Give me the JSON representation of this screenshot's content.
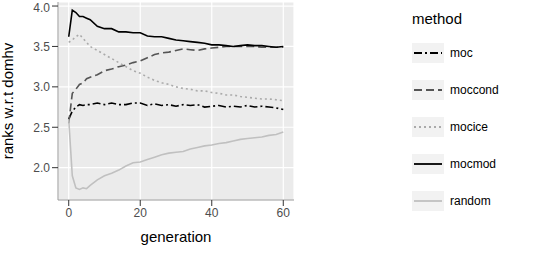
{
  "chart_data": {
    "type": "line",
    "x_label": "generation",
    "y_label": "ranks w.r.t domhv",
    "legend_title": "method",
    "legend": "right",
    "grid": true,
    "x": [
      0,
      1,
      2,
      3,
      4,
      5,
      6,
      8,
      10,
      12,
      14,
      16,
      18,
      20,
      22,
      24,
      26,
      28,
      30,
      32,
      34,
      36,
      38,
      40,
      42,
      44,
      46,
      48,
      50,
      52,
      54,
      56,
      58,
      60
    ],
    "xlim": [
      -3,
      63
    ],
    "xticks": [
      0,
      20,
      40,
      60
    ],
    "ylim": [
      1.6,
      4.05
    ],
    "yticks": [
      {
        "value": 2,
        "label": "2.0"
      },
      {
        "value": 2.5,
        "label": "2.5"
      },
      {
        "value": 3,
        "label": "3.0"
      },
      {
        "value": 3.5,
        "label": "3.5"
      },
      {
        "value": 4,
        "label": "4.0"
      }
    ],
    "series": [
      {
        "name": "moc",
        "color": "#000000",
        "line_style": "dashdot",
        "values": [
          2.6,
          2.7,
          2.75,
          2.78,
          2.77,
          2.78,
          2.78,
          2.8,
          2.78,
          2.8,
          2.78,
          2.78,
          2.8,
          2.8,
          2.77,
          2.79,
          2.77,
          2.78,
          2.76,
          2.78,
          2.77,
          2.78,
          2.75,
          2.76,
          2.77,
          2.75,
          2.76,
          2.75,
          2.77,
          2.75,
          2.76,
          2.75,
          2.74,
          2.72
        ]
      },
      {
        "name": "moccond",
        "color": "#555555",
        "line_style": "dashed",
        "values": [
          2.55,
          2.92,
          2.97,
          3.03,
          3.05,
          3.1,
          3.12,
          3.15,
          3.2,
          3.22,
          3.25,
          3.27,
          3.3,
          3.32,
          3.36,
          3.4,
          3.42,
          3.43,
          3.45,
          3.47,
          3.46,
          3.45,
          3.47,
          3.48,
          3.49,
          3.5,
          3.5,
          3.5,
          3.5,
          3.5,
          3.49,
          3.49,
          3.49,
          3.49
        ]
      },
      {
        "name": "mocice",
        "color": "#aaaaaa",
        "line_style": "dotted",
        "values": [
          3.55,
          3.58,
          3.62,
          3.65,
          3.6,
          3.55,
          3.5,
          3.45,
          3.4,
          3.35,
          3.3,
          3.25,
          3.2,
          3.17,
          3.12,
          3.08,
          3.05,
          3.03,
          3.0,
          2.98,
          2.97,
          2.95,
          2.95,
          2.93,
          2.92,
          2.9,
          2.9,
          2.88,
          2.87,
          2.86,
          2.85,
          2.85,
          2.84,
          2.83
        ]
      },
      {
        "name": "mocmod",
        "color": "#000000",
        "line_style": "solid",
        "values": [
          3.62,
          3.95,
          3.92,
          3.87,
          3.87,
          3.85,
          3.83,
          3.75,
          3.72,
          3.72,
          3.68,
          3.68,
          3.67,
          3.67,
          3.63,
          3.62,
          3.62,
          3.6,
          3.58,
          3.57,
          3.56,
          3.55,
          3.54,
          3.52,
          3.52,
          3.51,
          3.5,
          3.51,
          3.52,
          3.51,
          3.51,
          3.5,
          3.49,
          3.5
        ]
      },
      {
        "name": "random",
        "color": "#c0c0c0",
        "line_style": "solid",
        "values": [
          2.6,
          1.9,
          1.75,
          1.73,
          1.75,
          1.74,
          1.78,
          1.85,
          1.9,
          1.93,
          1.97,
          2.02,
          2.06,
          2.07,
          2.1,
          2.13,
          2.16,
          2.18,
          2.19,
          2.2,
          2.23,
          2.25,
          2.27,
          2.28,
          2.3,
          2.31,
          2.33,
          2.35,
          2.36,
          2.37,
          2.38,
          2.4,
          2.41,
          2.44
        ]
      }
    ]
  }
}
